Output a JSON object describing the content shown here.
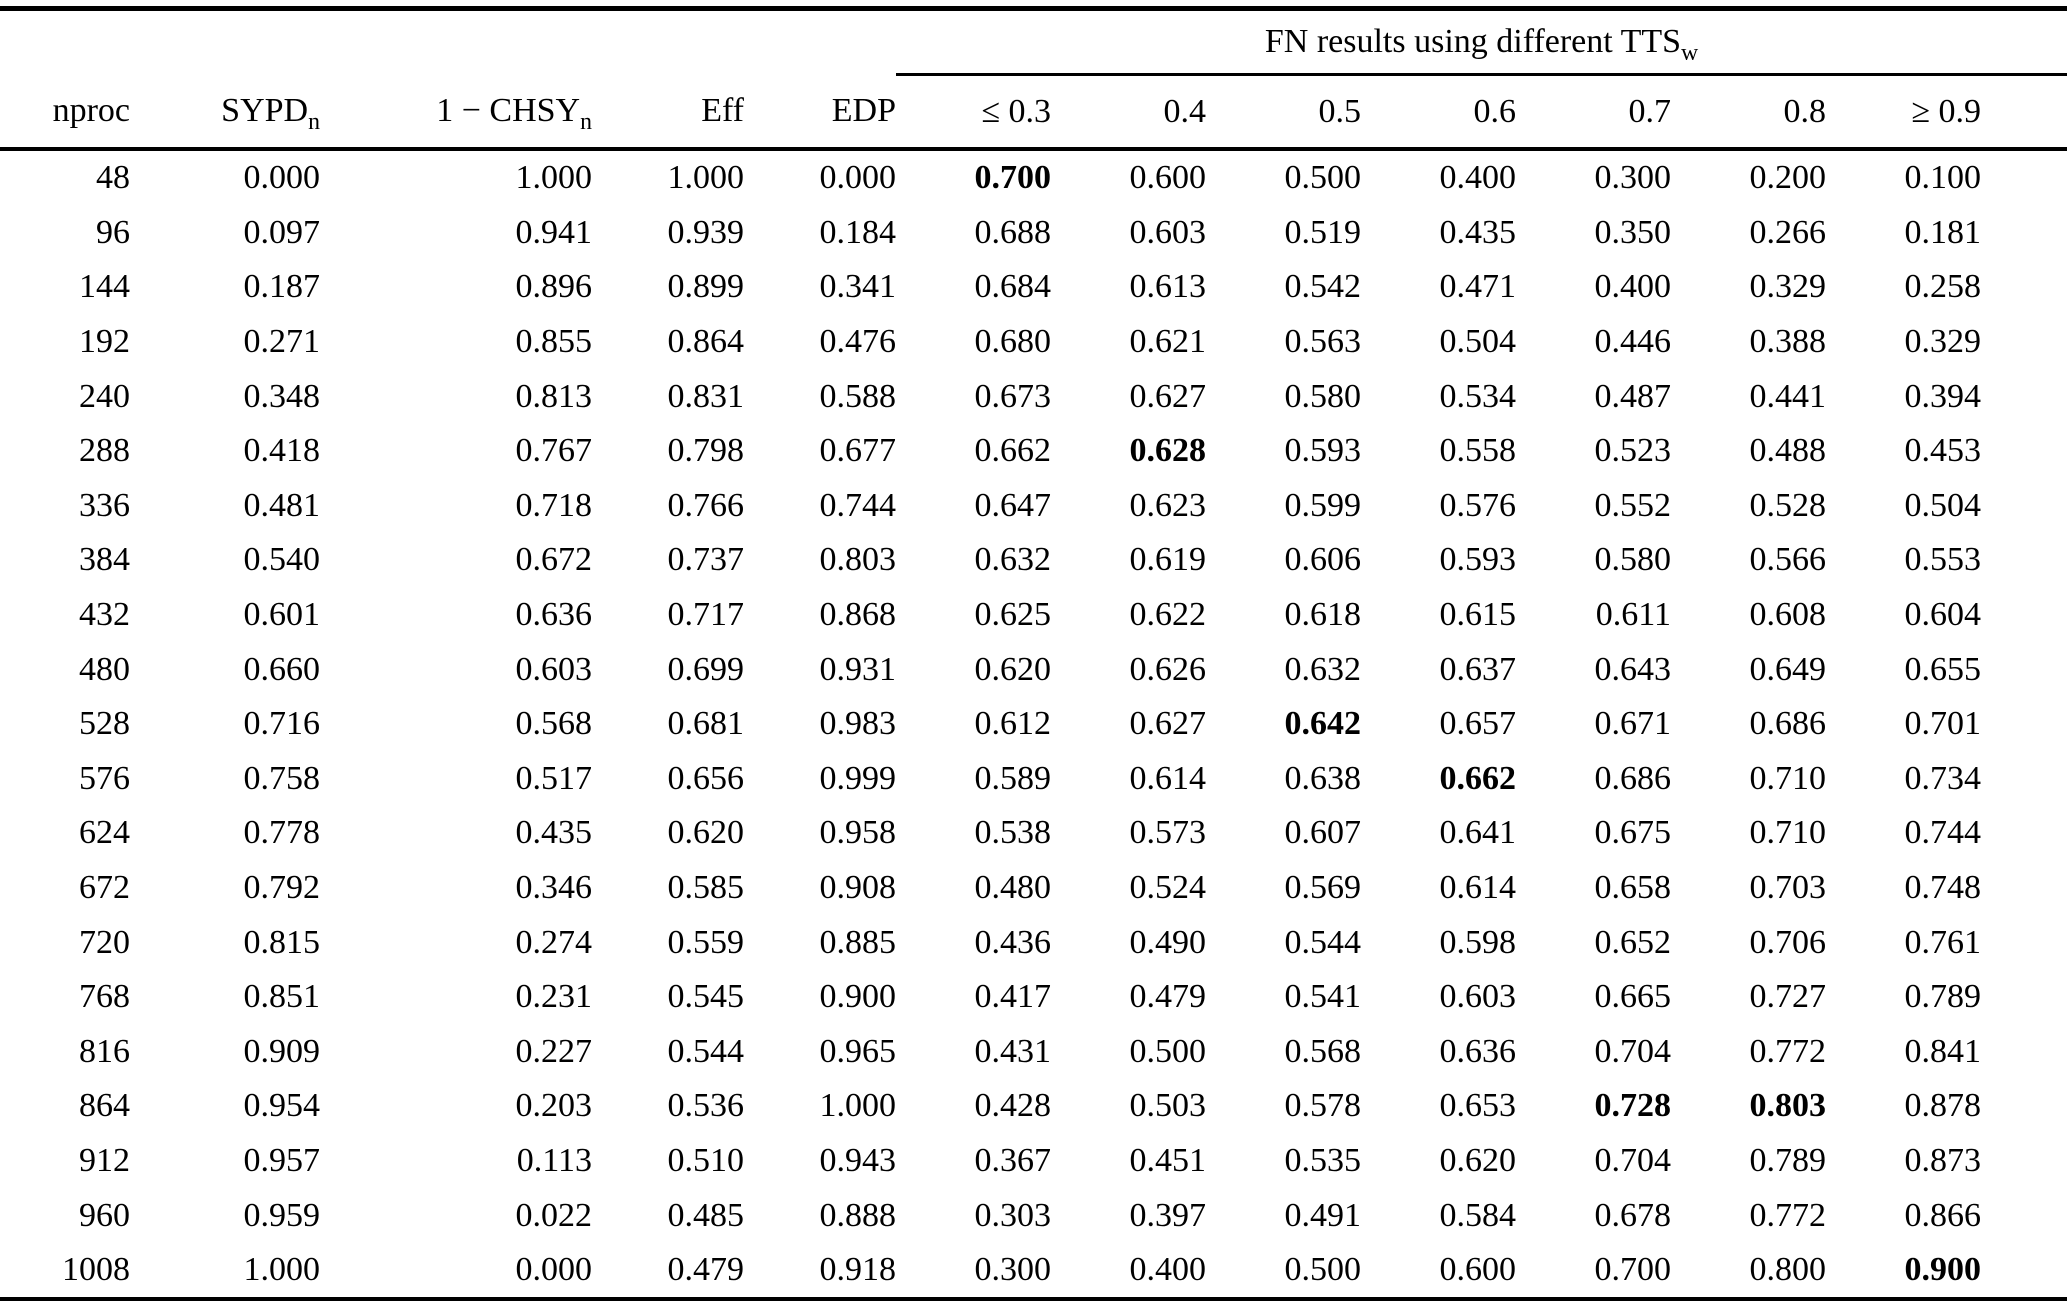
{
  "table": {
    "span_header": {
      "text": "FN results using different TTS",
      "sub": "w"
    },
    "columns": [
      {
        "label": "nproc"
      },
      {
        "label": "SYPD",
        "sub": "n"
      },
      {
        "label": "1 − CHSY",
        "sub": "n"
      },
      {
        "label": "Eff"
      },
      {
        "label": "EDP"
      },
      {
        "label": "≤ 0.3"
      },
      {
        "label": "0.4"
      },
      {
        "label": "0.5"
      },
      {
        "label": "0.6"
      },
      {
        "label": "0.7"
      },
      {
        "label": "0.8"
      },
      {
        "label": "≥ 0.9"
      }
    ],
    "rows": [
      [
        "48",
        "0.000",
        "1.000",
        "1.000",
        "0.000",
        "0.700",
        "0.600",
        "0.500",
        "0.400",
        "0.300",
        "0.200",
        "0.100"
      ],
      [
        "96",
        "0.097",
        "0.941",
        "0.939",
        "0.184",
        "0.688",
        "0.603",
        "0.519",
        "0.435",
        "0.350",
        "0.266",
        "0.181"
      ],
      [
        "144",
        "0.187",
        "0.896",
        "0.899",
        "0.341",
        "0.684",
        "0.613",
        "0.542",
        "0.471",
        "0.400",
        "0.329",
        "0.258"
      ],
      [
        "192",
        "0.271",
        "0.855",
        "0.864",
        "0.476",
        "0.680",
        "0.621",
        "0.563",
        "0.504",
        "0.446",
        "0.388",
        "0.329"
      ],
      [
        "240",
        "0.348",
        "0.813",
        "0.831",
        "0.588",
        "0.673",
        "0.627",
        "0.580",
        "0.534",
        "0.487",
        "0.441",
        "0.394"
      ],
      [
        "288",
        "0.418",
        "0.767",
        "0.798",
        "0.677",
        "0.662",
        "0.628",
        "0.593",
        "0.558",
        "0.523",
        "0.488",
        "0.453"
      ],
      [
        "336",
        "0.481",
        "0.718",
        "0.766",
        "0.744",
        "0.647",
        "0.623",
        "0.599",
        "0.576",
        "0.552",
        "0.528",
        "0.504"
      ],
      [
        "384",
        "0.540",
        "0.672",
        "0.737",
        "0.803",
        "0.632",
        "0.619",
        "0.606",
        "0.593",
        "0.580",
        "0.566",
        "0.553"
      ],
      [
        "432",
        "0.601",
        "0.636",
        "0.717",
        "0.868",
        "0.625",
        "0.622",
        "0.618",
        "0.615",
        "0.611",
        "0.608",
        "0.604"
      ],
      [
        "480",
        "0.660",
        "0.603",
        "0.699",
        "0.931",
        "0.620",
        "0.626",
        "0.632",
        "0.637",
        "0.643",
        "0.649",
        "0.655"
      ],
      [
        "528",
        "0.716",
        "0.568",
        "0.681",
        "0.983",
        "0.612",
        "0.627",
        "0.642",
        "0.657",
        "0.671",
        "0.686",
        "0.701"
      ],
      [
        "576",
        "0.758",
        "0.517",
        "0.656",
        "0.999",
        "0.589",
        "0.614",
        "0.638",
        "0.662",
        "0.686",
        "0.710",
        "0.734"
      ],
      [
        "624",
        "0.778",
        "0.435",
        "0.620",
        "0.958",
        "0.538",
        "0.573",
        "0.607",
        "0.641",
        "0.675",
        "0.710",
        "0.744"
      ],
      [
        "672",
        "0.792",
        "0.346",
        "0.585",
        "0.908",
        "0.480",
        "0.524",
        "0.569",
        "0.614",
        "0.658",
        "0.703",
        "0.748"
      ],
      [
        "720",
        "0.815",
        "0.274",
        "0.559",
        "0.885",
        "0.436",
        "0.490",
        "0.544",
        "0.598",
        "0.652",
        "0.706",
        "0.761"
      ],
      [
        "768",
        "0.851",
        "0.231",
        "0.545",
        "0.900",
        "0.417",
        "0.479",
        "0.541",
        "0.603",
        "0.665",
        "0.727",
        "0.789"
      ],
      [
        "816",
        "0.909",
        "0.227",
        "0.544",
        "0.965",
        "0.431",
        "0.500",
        "0.568",
        "0.636",
        "0.704",
        "0.772",
        "0.841"
      ],
      [
        "864",
        "0.954",
        "0.203",
        "0.536",
        "1.000",
        "0.428",
        "0.503",
        "0.578",
        "0.653",
        "0.728",
        "0.803",
        "0.878"
      ],
      [
        "912",
        "0.957",
        "0.113",
        "0.510",
        "0.943",
        "0.367",
        "0.451",
        "0.535",
        "0.620",
        "0.704",
        "0.789",
        "0.873"
      ],
      [
        "960",
        "0.959",
        "0.022",
        "0.485",
        "0.888",
        "0.303",
        "0.397",
        "0.491",
        "0.584",
        "0.678",
        "0.772",
        "0.866"
      ],
      [
        "1008",
        "1.000",
        "0.000",
        "0.479",
        "0.918",
        "0.300",
        "0.400",
        "0.500",
        "0.600",
        "0.700",
        "0.800",
        "0.900"
      ]
    ],
    "bold_cells": [
      [
        0,
        5
      ],
      [
        5,
        6
      ],
      [
        10,
        7
      ],
      [
        11,
        8
      ],
      [
        17,
        9
      ],
      [
        17,
        10
      ],
      [
        20,
        11
      ]
    ],
    "colors": {
      "text": "#000000",
      "background": "#ffffff",
      "rule": "#000000"
    }
  }
}
